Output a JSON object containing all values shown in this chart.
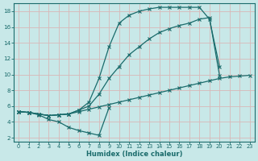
{
  "bg_color": "#c8e8e8",
  "line_color": "#1a6b6b",
  "grid_color": "#d0e8e8",
  "xlabel": "Humidex (Indice chaleur)",
  "xlim": [
    -0.5,
    23.5
  ],
  "ylim": [
    1.5,
    19.0
  ],
  "xticks": [
    0,
    1,
    2,
    3,
    4,
    5,
    6,
    7,
    8,
    9,
    10,
    11,
    12,
    13,
    14,
    15,
    16,
    17,
    18,
    19,
    20,
    21,
    22,
    23
  ],
  "yticks": [
    2,
    4,
    6,
    8,
    10,
    12,
    14,
    16,
    18
  ],
  "curve_top_x": [
    0,
    1,
    2,
    3,
    4,
    5,
    6,
    7,
    8,
    9,
    10,
    11,
    12,
    13,
    14,
    15,
    16,
    17,
    18,
    19,
    20
  ],
  "curve_top_y": [
    5.3,
    5.2,
    5.0,
    4.8,
    4.9,
    5.0,
    5.5,
    6.5,
    9.5,
    13.5,
    16.5,
    17.5,
    18.0,
    18.3,
    18.5,
    18.5,
    18.5,
    18.5,
    18.5,
    17.0,
    11.0
  ],
  "curve_mid_x": [
    0,
    1,
    2,
    3,
    4,
    5,
    6,
    7,
    8,
    9,
    10,
    11,
    12,
    13,
    14,
    15,
    16,
    17,
    18,
    19,
    20
  ],
  "curve_mid_y": [
    5.3,
    5.2,
    5.0,
    4.8,
    4.9,
    5.0,
    5.5,
    6.0,
    7.5,
    9.5,
    11.0,
    12.5,
    13.5,
    14.5,
    15.3,
    15.8,
    16.2,
    16.5,
    17.0,
    17.2,
    9.9
  ],
  "curve_low_x": [
    0,
    1,
    2,
    3,
    4,
    5,
    6,
    7,
    8,
    9,
    10,
    11,
    12,
    13,
    14,
    15,
    16,
    17,
    18,
    19,
    20,
    21,
    22,
    23
  ],
  "curve_low_y": [
    5.3,
    5.2,
    5.0,
    4.8,
    4.9,
    5.0,
    5.3,
    5.6,
    5.9,
    6.2,
    6.5,
    6.8,
    7.1,
    7.4,
    7.7,
    8.0,
    8.3,
    8.6,
    8.9,
    9.2,
    9.5,
    9.7,
    9.8,
    9.9
  ],
  "curve_dip_x": [
    0,
    1,
    2,
    3,
    4,
    5,
    6,
    7,
    8,
    9
  ],
  "curve_dip_y": [
    5.3,
    5.2,
    4.9,
    4.3,
    4.0,
    3.3,
    2.9,
    2.6,
    2.3,
    5.8
  ]
}
